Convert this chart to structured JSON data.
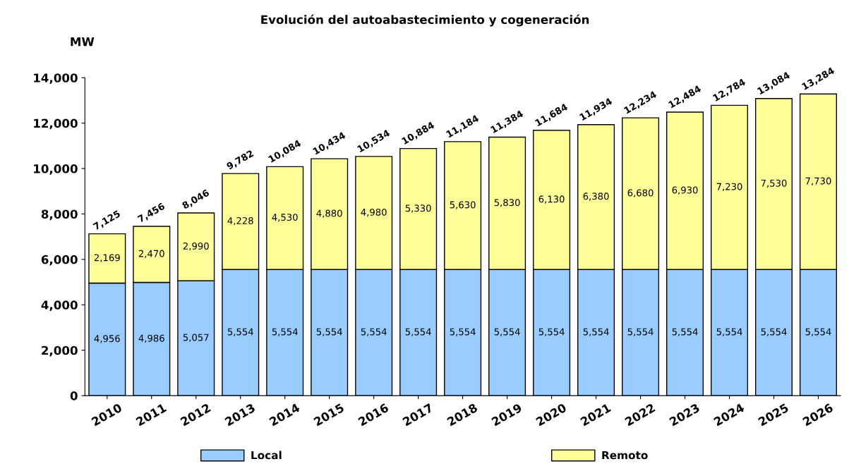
{
  "chart_data": {
    "type": "bar",
    "title": "Evolución del autoabastecimiento y cogeneración",
    "ylabel": "MW",
    "categories": [
      "2010",
      "2011",
      "2012",
      "2013",
      "2014",
      "2015",
      "2016",
      "2017",
      "2018",
      "2019",
      "2020",
      "2021",
      "2022",
      "2023",
      "2024",
      "2025",
      "2026"
    ],
    "stacked": true,
    "series": [
      {
        "name": "Local",
        "color": "#99ccff",
        "values": [
          4956,
          4986,
          5057,
          5554,
          5554,
          5554,
          5554,
          5554,
          5554,
          5554,
          5554,
          5554,
          5554,
          5554,
          5554,
          5554,
          5554
        ],
        "value_labels": [
          "4,956",
          "4,986",
          "5,057",
          "5,554",
          "5,554",
          "5,554",
          "5,554",
          "5,554",
          "5,554",
          "5,554",
          "5,554",
          "5,554",
          "5,554",
          "5,554",
          "5,554",
          "5,554",
          "5,554"
        ]
      },
      {
        "name": "Remoto",
        "color": "#ffff99",
        "values": [
          2169,
          2470,
          2990,
          4228,
          4530,
          4880,
          4980,
          5330,
          5630,
          5830,
          6130,
          6380,
          6680,
          6930,
          7230,
          7530,
          7730
        ],
        "value_labels": [
          "2,169",
          "2,470",
          "2,990",
          "4,228",
          "4,530",
          "4,880",
          "4,980",
          "5,330",
          "5,630",
          "5,830",
          "6,130",
          "6,380",
          "6,680",
          "6,930",
          "7,230",
          "7,530",
          "7,730"
        ]
      }
    ],
    "totals": [
      "7,125",
      "7,456",
      "8,046",
      "9,782",
      "10,084",
      "10,434",
      "10,534",
      "10,884",
      "11,184",
      "11,384",
      "11,684",
      "11,934",
      "12,234",
      "12,484",
      "12,784",
      "13,084",
      "13,284"
    ],
    "ylim": [
      0,
      14000
    ],
    "yticks": [
      0,
      {
        "value": 2000,
        "label": "2,000"
      },
      {
        "value": 4000,
        "label": "4,000"
      },
      {
        "value": 6000,
        "label": "6,000"
      },
      {
        "value": 8000,
        "label": "8,000"
      },
      {
        "value": 10000,
        "label": "10,000"
      },
      {
        "value": 12000,
        "label": "12,000"
      },
      {
        "value": 14000,
        "label": "14,000"
      }
    ],
    "legend": "bottom",
    "grid": false
  }
}
